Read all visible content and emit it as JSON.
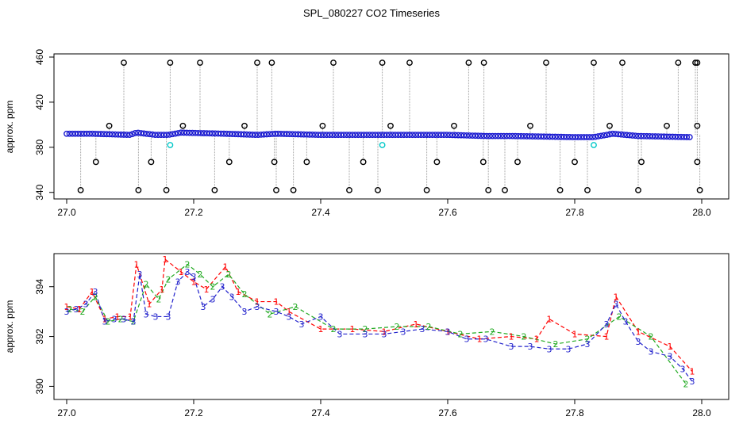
{
  "figure": {
    "title": "SPL_080227  CO2 Timeseries"
  },
  "chart_data": [
    {
      "type": "scatter",
      "panel": "top",
      "title": "SPL_080227  CO2 Timeseries",
      "xlabel": "",
      "ylabel": "approx. ppm",
      "xlim": [
        27.0,
        28.0
      ],
      "ylim": [
        337,
        460
      ],
      "xticks": [
        "27.0",
        "27.2",
        "27.4",
        "27.6",
        "27.8",
        "28.0"
      ],
      "xtick_values": [
        27.0,
        27.2,
        27.4,
        27.6,
        27.8,
        28.0
      ],
      "yticks": [
        "340",
        "380",
        "420",
        "460"
      ],
      "ytick_values": [
        340,
        380,
        420,
        460
      ],
      "baseline_series": [
        {
          "name": "main",
          "color": "#1a1ad0",
          "x": [
            27.0,
            27.04,
            27.1,
            27.11,
            27.14,
            27.16,
            27.18,
            27.25,
            27.3,
            27.33,
            27.4,
            27.5,
            27.6,
            27.66,
            27.7,
            27.8,
            27.83,
            27.86,
            27.9,
            27.98
          ],
          "y": [
            392,
            392,
            391,
            393,
            391,
            391,
            393,
            392,
            391,
            392,
            391,
            391,
            391,
            390,
            390,
            389,
            389,
            392,
            390,
            389
          ]
        }
      ],
      "outliers_high": {
        "color": "#000000",
        "x": [
          27.09,
          27.163,
          27.21,
          27.3,
          27.323,
          27.42,
          27.497,
          27.54,
          27.633,
          27.657,
          27.755,
          27.83,
          27.875,
          27.963,
          27.99,
          27.993
        ],
        "y": [
          455,
          455,
          455,
          455,
          455,
          455,
          455,
          455,
          455,
          455,
          455,
          455,
          455,
          455,
          455,
          455
        ]
      },
      "outliers_mid": {
        "color": "#000000",
        "x": [
          27.067,
          27.183,
          27.28,
          27.403,
          27.51,
          27.61,
          27.73,
          27.855,
          27.945,
          27.993
        ],
        "y": [
          399,
          399,
          399,
          399,
          399,
          399,
          399,
          399,
          399,
          399
        ]
      },
      "outliers_low_a": {
        "color": "#000000",
        "x": [
          27.046,
          27.133,
          27.256,
          27.327,
          27.378,
          27.467,
          27.583,
          27.656,
          27.71,
          27.8,
          27.905,
          27.993
        ],
        "y": [
          367,
          367,
          367,
          367,
          367,
          367,
          367,
          367,
          367,
          367,
          367,
          367
        ]
      },
      "outliers_low_b": {
        "color": "#000000",
        "x": [
          27.022,
          27.113,
          27.157,
          27.233,
          27.33,
          27.357,
          27.445,
          27.49,
          27.567,
          27.664,
          27.69,
          27.777,
          27.82,
          27.9,
          27.997
        ],
        "y": [
          342,
          342,
          342,
          342,
          342,
          342,
          342,
          342,
          342,
          342,
          342,
          342,
          342,
          342,
          342
        ]
      },
      "cyan_points": {
        "color": "#00c8c8",
        "x": [
          27.163,
          27.497,
          27.83
        ],
        "y": [
          382,
          382,
          382
        ]
      }
    },
    {
      "type": "scatter",
      "panel": "bottom",
      "xlabel": "",
      "ylabel": "approx. ppm",
      "xlim": [
        27.0,
        28.0
      ],
      "ylim": [
        389.6,
        395.2
      ],
      "xticks": [
        "27.0",
        "27.2",
        "27.4",
        "27.6",
        "27.8",
        "28.0"
      ],
      "xtick_values": [
        27.0,
        27.2,
        27.4,
        27.6,
        27.8,
        28.0
      ],
      "yticks": [
        "390",
        "392",
        "394"
      ],
      "ytick_values": [
        390,
        392,
        394
      ],
      "series": [
        {
          "name": "1",
          "symbol": "1",
          "color": "#ff0000",
          "x": [
            27.0,
            27.02,
            27.04,
            27.06,
            27.08,
            27.1,
            27.11,
            27.13,
            27.15,
            27.155,
            27.18,
            27.2,
            27.22,
            27.25,
            27.27,
            27.3,
            27.33,
            27.35,
            27.4,
            27.45,
            27.5,
            27.55,
            27.6,
            27.65,
            27.7,
            27.74,
            27.76,
            27.8,
            27.85,
            27.865,
            27.9,
            27.95,
            27.985
          ],
          "y": [
            393.2,
            393.1,
            393.8,
            392.7,
            392.8,
            392.8,
            394.9,
            393.3,
            393.9,
            395.1,
            394.6,
            394.2,
            393.9,
            394.8,
            393.8,
            393.4,
            393.4,
            393.0,
            392.3,
            392.3,
            392.2,
            392.5,
            392.2,
            391.9,
            392.0,
            391.9,
            392.7,
            392.1,
            392.0,
            393.6,
            392.2,
            391.6,
            390.6
          ]
        },
        {
          "name": "2",
          "symbol": "2",
          "color": "#22aa22",
          "x": [
            27.005,
            27.025,
            27.045,
            27.065,
            27.085,
            27.105,
            27.125,
            27.145,
            27.16,
            27.19,
            27.21,
            27.23,
            27.255,
            27.28,
            27.32,
            27.36,
            27.42,
            27.47,
            27.52,
            27.57,
            27.62,
            27.67,
            27.72,
            27.77,
            27.82,
            27.87,
            27.92,
            27.975
          ],
          "y": [
            393.1,
            393.0,
            393.6,
            392.6,
            392.7,
            392.6,
            394.1,
            393.5,
            394.3,
            394.9,
            394.5,
            394.0,
            394.5,
            393.7,
            392.9,
            393.2,
            392.3,
            392.3,
            392.4,
            392.4,
            392.1,
            392.2,
            392.0,
            391.7,
            391.9,
            392.8,
            392.0,
            390.1
          ]
        },
        {
          "name": "3",
          "symbol": "3",
          "color": "#2222cc",
          "x": [
            27.0,
            27.015,
            27.03,
            27.045,
            27.06,
            27.075,
            27.09,
            27.105,
            27.115,
            27.125,
            27.14,
            27.16,
            27.175,
            27.19,
            27.2,
            27.215,
            27.23,
            27.245,
            27.26,
            27.28,
            27.3,
            27.33,
            27.35,
            27.37,
            27.4,
            27.43,
            27.47,
            27.5,
            27.53,
            27.56,
            27.6,
            27.63,
            27.66,
            27.7,
            27.73,
            27.76,
            27.79,
            27.82,
            27.85,
            27.865,
            27.88,
            27.9,
            27.92,
            27.95,
            27.97,
            27.985
          ],
          "y": [
            393.0,
            393.1,
            393.3,
            393.8,
            392.6,
            392.7,
            392.7,
            392.6,
            394.5,
            392.9,
            392.8,
            392.8,
            394.2,
            394.6,
            394.4,
            393.2,
            393.5,
            394.0,
            393.6,
            393.0,
            393.2,
            393.0,
            392.8,
            392.5,
            392.8,
            392.1,
            392.1,
            392.1,
            392.2,
            392.3,
            392.2,
            391.9,
            391.9,
            391.6,
            391.6,
            391.5,
            391.5,
            391.7,
            392.5,
            393.3,
            392.6,
            391.8,
            391.4,
            391.2,
            390.7,
            390.2
          ]
        }
      ]
    }
  ]
}
